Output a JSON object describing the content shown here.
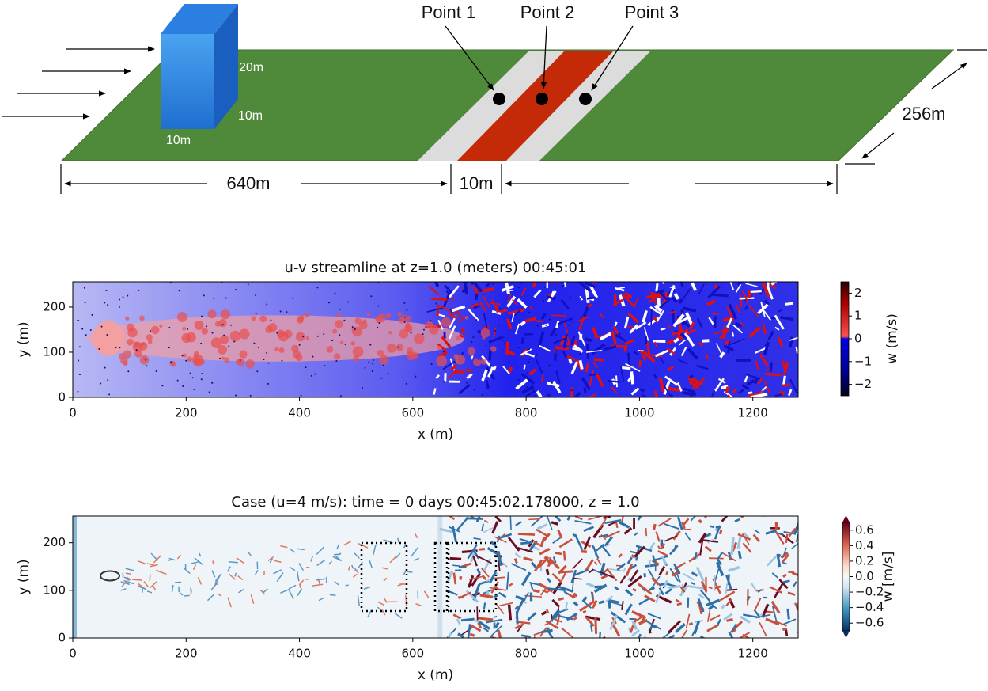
{
  "diagram": {
    "points": [
      "Point 1",
      "Point 2",
      "Point 3"
    ],
    "building_height": "20m",
    "building_depth": "10m",
    "building_width": "10m",
    "upstream_length": "640m",
    "road_width": "10m",
    "domain_width": "256m"
  },
  "chart_data": [
    {
      "type": "heatmap",
      "title": "u-v streamline at z=1.0 (meters)  00:45:01",
      "x_label": "x (m)",
      "y_label": "y (m)",
      "xlim": [
        0,
        1280
      ],
      "ylim": [
        0,
        256
      ],
      "xticks": [
        0,
        200,
        400,
        600,
        800,
        1000,
        1200
      ],
      "yticks": [
        0,
        100,
        200
      ],
      "colorbar": {
        "label": "w (m/s)",
        "lim": [
          -2.5,
          2.5
        ],
        "ticks": [
          {
            "value": -2,
            "label": "−2"
          },
          {
            "value": -1,
            "label": "−1"
          },
          0,
          1,
          2
        ]
      }
    },
    {
      "type": "heatmap",
      "title": "Case (u=4 m/s): time = 0 days 00:45:02.178000, z = 1.0",
      "x_label": "x (m)",
      "y_label": "y (m)",
      "xlim": [
        0,
        1280
      ],
      "ylim": [
        0,
        256
      ],
      "xticks": [
        0,
        200,
        400,
        600,
        800,
        1000,
        1200
      ],
      "yticks": [
        0,
        100,
        200
      ],
      "colorbar": {
        "label": "w [m/s]",
        "lim": [
          -0.7,
          0.7
        ],
        "ticks": [
          {
            "value": -0.6,
            "label": "−0.6"
          },
          {
            "value": -0.4,
            "label": "−0.4"
          },
          {
            "value": -0.2,
            "label": "−0.2"
          },
          {
            "value": 0,
            "label": "0.0"
          },
          0.2,
          0.4,
          0.6
        ]
      }
    }
  ]
}
